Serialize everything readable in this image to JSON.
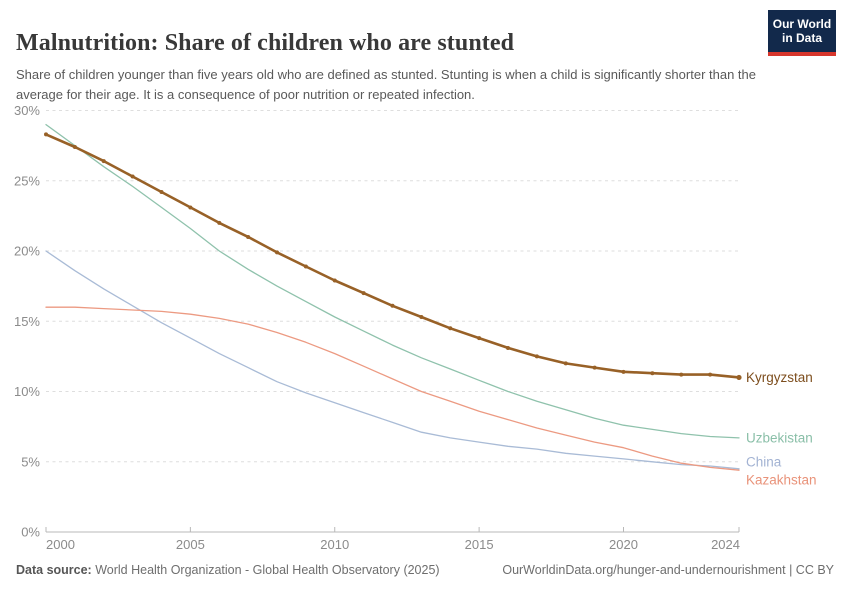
{
  "header": {
    "title": "Malnutrition: Share of children who are stunted",
    "logo": {
      "line1": "Our World",
      "line2": "in Data",
      "bg_color": "#12294B",
      "accent_color": "#D7362C"
    }
  },
  "subtitle": "Share of children younger than five years old who are defined as stunted. Stunting is when a child is significantly shorter than the average for their age. It is a consequence of poor nutrition or repeated infection.",
  "footer": {
    "datasource_label": "Data source:",
    "datasource_value": " World Health Organization - Global Health Observatory (2025)",
    "link": "OurWorldinData.org/hunger-and-undernourishment | CC BY"
  },
  "chart_data": {
    "type": "line",
    "title": "Malnutrition: Share of children who are stunted",
    "xlabel": "",
    "ylabel": "",
    "xlim": [
      2000,
      2024
    ],
    "ylim": [
      0,
      30
    ],
    "grid": true,
    "x_ticks": [
      2000,
      2005,
      2010,
      2015,
      2020,
      2024
    ],
    "y_ticks": [
      0,
      5,
      10,
      15,
      20,
      25,
      30
    ],
    "y_tick_suffix": "%",
    "legend_position": "end-of-line-labels-right",
    "x": [
      2000,
      2001,
      2002,
      2003,
      2004,
      2005,
      2006,
      2007,
      2008,
      2009,
      2010,
      2011,
      2012,
      2013,
      2014,
      2015,
      2016,
      2017,
      2018,
      2019,
      2020,
      2021,
      2022,
      2023,
      2024
    ],
    "series": [
      {
        "name": "China",
        "color": "#A9BBD6",
        "label_color": "#A3B3D3",
        "line_width": 1.3,
        "markers": false,
        "label_dy": -7,
        "values": [
          20.0,
          18.6,
          17.3,
          16.1,
          14.9,
          13.8,
          12.7,
          11.7,
          10.7,
          9.9,
          9.2,
          8.5,
          7.8,
          7.1,
          6.7,
          6.4,
          6.1,
          5.9,
          5.6,
          5.4,
          5.2,
          5.0,
          4.8,
          4.7,
          4.5
        ]
      },
      {
        "name": "Kazakhstan",
        "color": "#EC9A82",
        "label_color": "#E9937A",
        "line_width": 1.3,
        "markers": false,
        "label_dy": 10,
        "values": [
          16.0,
          16.0,
          15.9,
          15.8,
          15.7,
          15.5,
          15.2,
          14.8,
          14.2,
          13.5,
          12.7,
          11.8,
          10.9,
          10.0,
          9.3,
          8.6,
          8.0,
          7.4,
          6.9,
          6.4,
          6.0,
          5.4,
          4.9,
          4.6,
          4.4
        ]
      },
      {
        "name": "Uzbekistan",
        "color": "#8FC2AC",
        "label_color": "#8ABFA8",
        "line_width": 1.3,
        "markers": false,
        "label_dy": 0,
        "values": [
          29.0,
          27.5,
          26.0,
          24.6,
          23.1,
          21.6,
          20.0,
          18.7,
          17.5,
          16.4,
          15.3,
          14.3,
          13.3,
          12.4,
          11.6,
          10.8,
          10.0,
          9.3,
          8.7,
          8.1,
          7.6,
          7.3,
          7.0,
          6.8,
          6.7
        ]
      },
      {
        "name": "Kyrgyzstan",
        "color": "#986127",
        "label_color": "#7D4E1E",
        "line_width": 2.6,
        "markers": true,
        "label_dy": 0,
        "values": [
          28.3,
          27.4,
          26.4,
          25.3,
          24.2,
          23.1,
          22.0,
          21.0,
          19.9,
          18.9,
          17.9,
          17.0,
          16.1,
          15.3,
          14.5,
          13.8,
          13.1,
          12.5,
          12.0,
          11.7,
          11.4,
          11.3,
          11.2,
          11.2,
          11.0
        ]
      }
    ]
  }
}
